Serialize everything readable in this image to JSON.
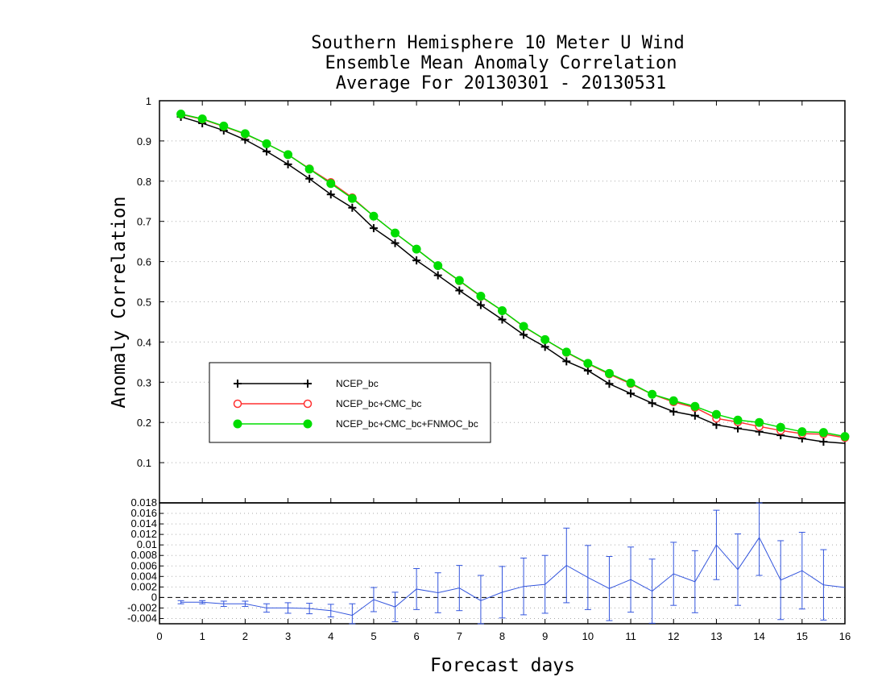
{
  "chart_data": [
    {
      "type": "line",
      "title_lines": [
        "Southern Hemisphere 10 Meter U Wind",
        "Ensemble Mean Anomaly Correlation",
        "Average For 20130301 - 20130531"
      ],
      "xlabel": "Forecast days",
      "ylabel": "Anomaly Correlation",
      "xlim": [
        0,
        16
      ],
      "ylim": [
        0,
        1
      ],
      "x_ticks": [
        "0",
        "1",
        "2",
        "3",
        "4",
        "5",
        "6",
        "7",
        "8",
        "9",
        "10",
        "11",
        "12",
        "13",
        "14",
        "15",
        "16"
      ],
      "y_ticks": [
        "0.1",
        "0.2",
        "0.3",
        "0.4",
        "0.5",
        "0.6",
        "0.7",
        "0.8",
        "0.9",
        "1"
      ],
      "grid": "horizontal-dotted",
      "legend_position": "left-middle",
      "x": [
        0.5,
        1,
        1.5,
        2,
        2.5,
        3,
        3.5,
        4,
        4.5,
        5,
        5.5,
        6,
        6.5,
        7,
        7.5,
        8,
        8.5,
        9,
        9.5,
        10,
        10.5,
        11,
        11.5,
        12,
        12.5,
        13,
        13.5,
        14,
        14.5,
        15,
        15.5,
        16
      ],
      "series": [
        {
          "name": "NCEP_bc",
          "color": "#000000",
          "marker": "plus",
          "values": [
            0.96,
            0.944,
            0.926,
            0.903,
            0.874,
            0.842,
            0.806,
            0.767,
            0.734,
            0.683,
            0.646,
            0.603,
            0.566,
            0.528,
            0.492,
            0.456,
            0.418,
            0.388,
            0.352,
            0.329,
            0.296,
            0.272,
            0.248,
            0.227,
            0.217,
            0.194,
            0.185,
            0.177,
            0.168,
            0.16,
            0.152,
            0.148
          ]
        },
        {
          "name": "NCEP_bc+CMC_bc",
          "color": "#ff3030",
          "marker": "open-circle",
          "values": [
            0.966,
            0.954,
            0.936,
            0.917,
            0.893,
            0.866,
            0.831,
            0.797,
            0.759,
            0.713,
            0.671,
            0.631,
            0.59,
            0.552,
            0.513,
            0.478,
            0.438,
            0.406,
            0.374,
            0.346,
            0.32,
            0.296,
            0.27,
            0.251,
            0.237,
            0.21,
            0.201,
            0.19,
            0.18,
            0.172,
            0.171,
            0.162
          ]
        },
        {
          "name": "NCEP_bc+CMC_bc+FNMOC_bc",
          "color": "#00dd00",
          "marker": "filled-circle",
          "values": [
            0.967,
            0.955,
            0.937,
            0.918,
            0.893,
            0.866,
            0.83,
            0.794,
            0.757,
            0.713,
            0.671,
            0.631,
            0.59,
            0.553,
            0.514,
            0.478,
            0.439,
            0.406,
            0.375,
            0.347,
            0.322,
            0.298,
            0.27,
            0.254,
            0.24,
            0.22,
            0.206,
            0.2,
            0.188,
            0.177,
            0.175,
            0.165
          ]
        }
      ]
    },
    {
      "type": "line",
      "xlim": [
        0,
        16
      ],
      "ylim": [
        -0.005,
        0.018
      ],
      "y_ticks": [
        "-0.004",
        "-0.002",
        "0",
        "0.002",
        "0.004",
        "0.006",
        "0.008",
        "0.01",
        "0.012",
        "0.014",
        "0.016",
        "0.018"
      ],
      "grid": "horizontal-dotted",
      "zero_line": "dashed",
      "x": [
        0.5,
        1,
        1.5,
        2,
        2.5,
        3,
        3.5,
        4,
        4.5,
        5,
        5.5,
        6,
        6.5,
        7,
        7.5,
        8,
        8.5,
        9,
        9.5,
        10,
        10.5,
        11,
        11.5,
        12,
        12.5,
        13,
        13.5,
        14,
        14.5,
        15,
        15.5,
        16
      ],
      "series": [
        {
          "color": "#3355dd",
          "marker": "error-bars",
          "values": [
            -0.0009,
            -0.0009,
            -0.0012,
            -0.0012,
            -0.002,
            -0.002,
            -0.0021,
            -0.0025,
            -0.0034,
            -0.0004,
            -0.0018,
            0.0016,
            0.0009,
            0.0018,
            -0.0006,
            0.001,
            0.0021,
            0.0025,
            0.0061,
            0.0038,
            0.0017,
            0.0034,
            0.0012,
            0.0045,
            0.003,
            0.01,
            0.0053,
            0.0114,
            0.0033,
            0.0051,
            0.0024,
            0.0019
          ],
          "errors": [
            0.0003,
            0.0003,
            0.0005,
            0.0005,
            0.0008,
            0.001,
            0.001,
            0.0012,
            0.0022,
            0.0023,
            0.0028,
            0.0039,
            0.0038,
            0.0043,
            0.0048,
            0.0049,
            0.0054,
            0.0055,
            0.0071,
            0.0061,
            0.0061,
            0.0062,
            0.0061,
            0.006,
            0.0059,
            0.0066,
            0.0068,
            0.0072,
            0.0075,
            0.0073,
            0.0067,
            0.0
          ]
        }
      ]
    }
  ]
}
